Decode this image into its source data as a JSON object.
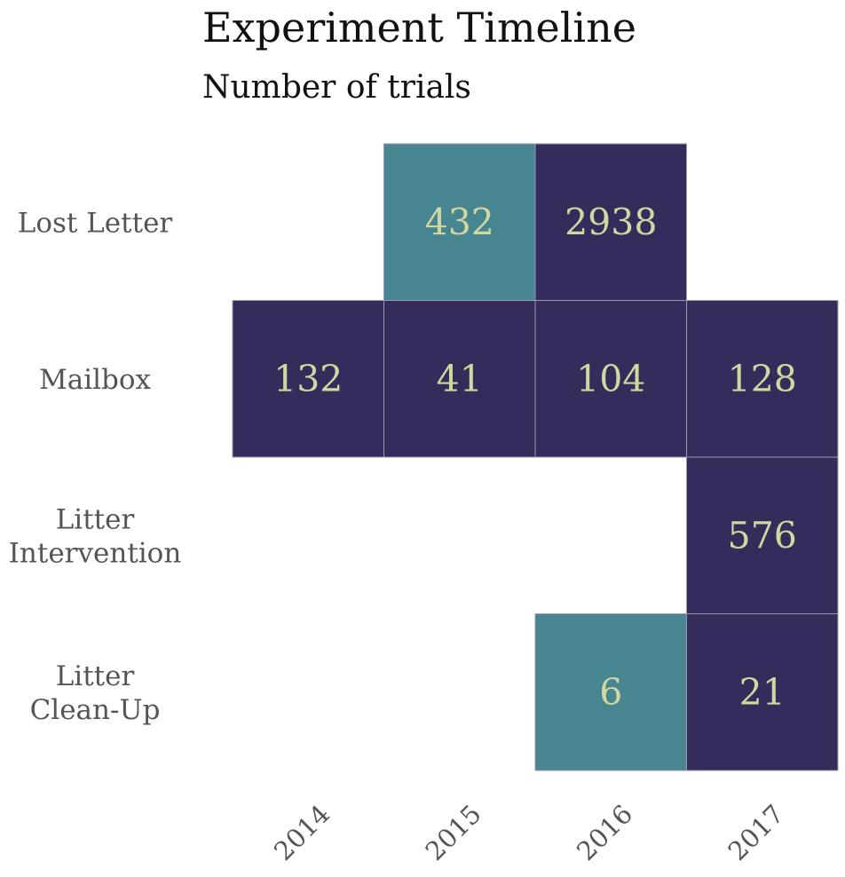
{
  "chart_data": {
    "type": "heatmap",
    "title": "Experiment Timeline",
    "subtitle": "Number of trials",
    "rows": [
      {
        "label": [
          "Lost Letter"
        ]
      },
      {
        "label": [
          "Mailbox"
        ]
      },
      {
        "label": [
          "Litter",
          "Intervention"
        ]
      },
      {
        "label": [
          "Litter",
          "Clean-Up"
        ]
      }
    ],
    "columns": [
      "2014",
      "2015",
      "2016",
      "2017"
    ],
    "cells": [
      {
        "row": 0,
        "col": 1,
        "value": 432,
        "color": "#478591"
      },
      {
        "row": 0,
        "col": 2,
        "value": 2938,
        "color": "#352c5b"
      },
      {
        "row": 1,
        "col": 0,
        "value": 132,
        "color": "#352c5b"
      },
      {
        "row": 1,
        "col": 1,
        "value": 41,
        "color": "#352c5b"
      },
      {
        "row": 1,
        "col": 2,
        "value": 104,
        "color": "#352c5b"
      },
      {
        "row": 1,
        "col": 3,
        "value": 128,
        "color": "#352c5b"
      },
      {
        "row": 2,
        "col": 3,
        "value": 576,
        "color": "#352c5b"
      },
      {
        "row": 3,
        "col": 2,
        "value": 6,
        "color": "#478591"
      },
      {
        "row": 3,
        "col": 3,
        "value": 21,
        "color": "#352c5b"
      }
    ],
    "label_color": "#d2d6a0",
    "grid": false,
    "legend": "none"
  }
}
